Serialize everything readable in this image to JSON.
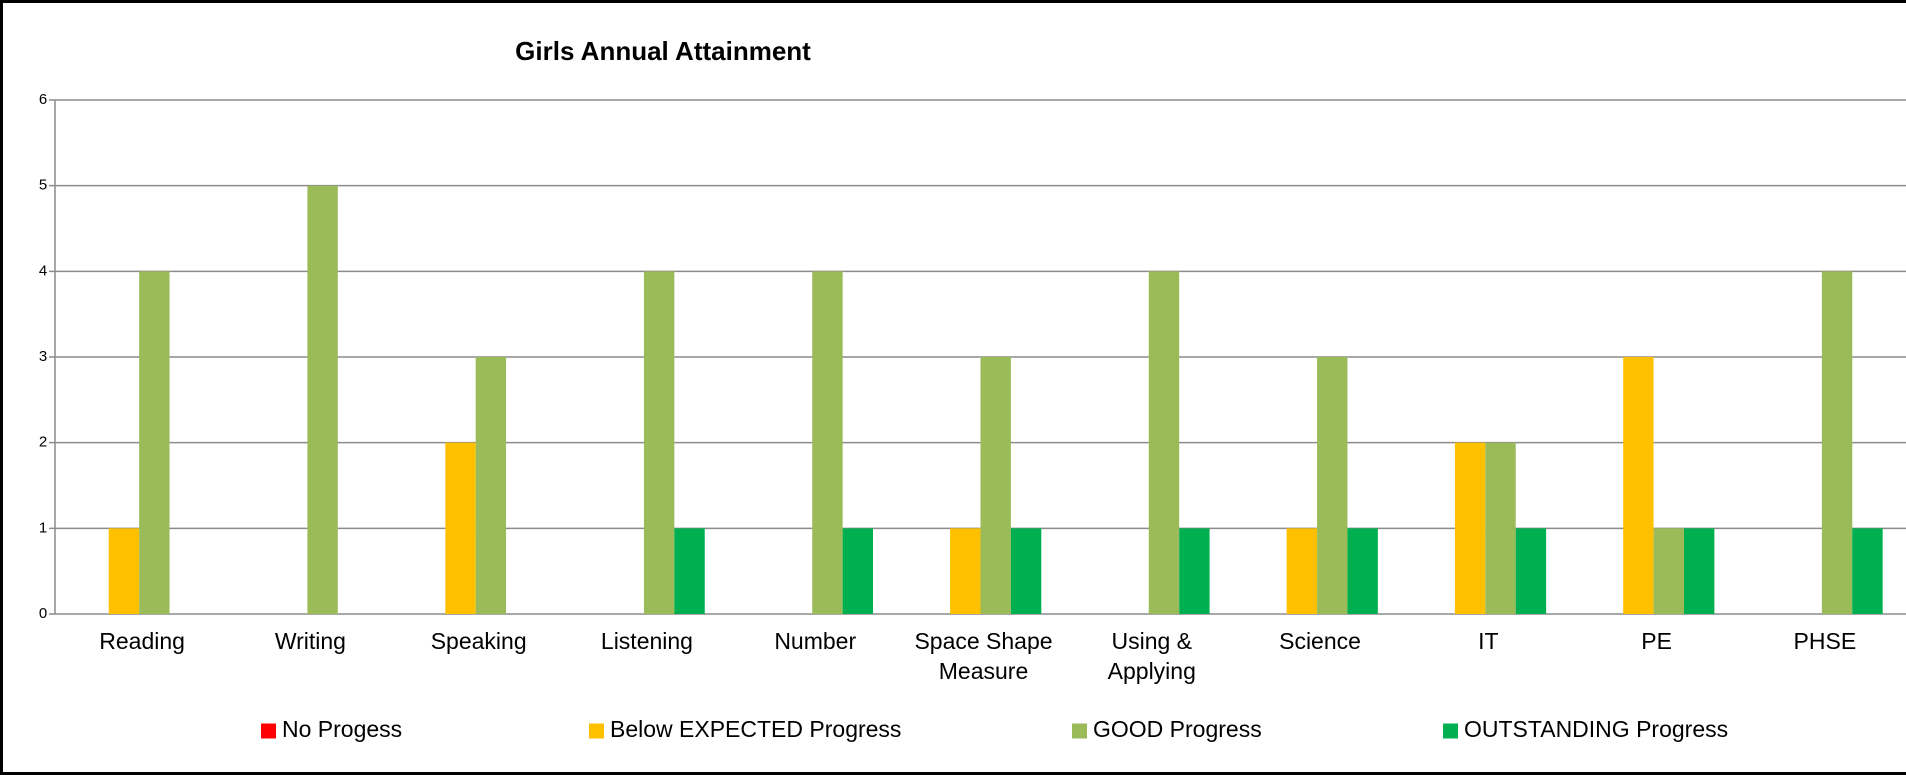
{
  "chart_data": {
    "type": "bar",
    "title": "Girls  Annual  Attainment",
    "categories": [
      "Reading",
      "Writing",
      "Speaking",
      "Listening",
      "Number",
      "Space Shape Measure",
      "Using & Applying",
      "Science",
      "IT",
      "PE",
      "PHSE"
    ],
    "series": [
      {
        "name": "No Progess",
        "color": "#ff0000",
        "values": [
          0,
          0,
          0,
          0,
          0,
          0,
          0,
          0,
          0,
          0,
          0
        ]
      },
      {
        "name": "Below EXPECTED Progress",
        "color": "#ffc000",
        "values": [
          1,
          0,
          2,
          0,
          0,
          1,
          0,
          1,
          2,
          3,
          0
        ]
      },
      {
        "name": "GOOD Progress",
        "color": "#9bbb59",
        "values": [
          4,
          5,
          3,
          4,
          4,
          3,
          4,
          3,
          2,
          1,
          4
        ]
      },
      {
        "name": "OUTSTANDING Progress",
        "color": "#00b050",
        "values": [
          0,
          0,
          0,
          1,
          1,
          1,
          1,
          1,
          1,
          1,
          1
        ]
      }
    ],
    "ylim": [
      0,
      6
    ],
    "yticks": [
      0,
      1,
      2,
      3,
      4,
      5,
      6
    ],
    "grid": true,
    "legend": "bottom"
  }
}
